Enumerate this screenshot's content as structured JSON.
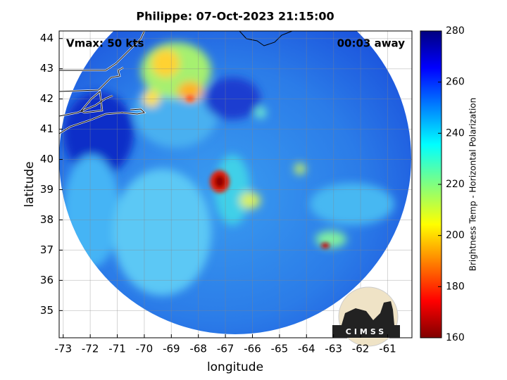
{
  "chart_data": {
    "type": "image",
    "title": "Philippe: 07-Oct-2023 21:15:00",
    "xlabel": "longitude",
    "ylabel": "latitude",
    "annotations": [
      "Vmax: 50 kts",
      "00:03 away"
    ],
    "logo": "CIMSS",
    "xlim": [
      -73.15,
      -60.1
    ],
    "xticks": [
      -73,
      -72,
      -71,
      -70,
      -69,
      -68,
      -67,
      -66,
      -65,
      -64,
      -63,
      -62,
      -61
    ],
    "ylim": [
      34.1,
      44.25
    ],
    "yticks": [
      35,
      36,
      37,
      38,
      39,
      40,
      41,
      42,
      43,
      44
    ],
    "colorbar": {
      "label": "Brightness Temp - Horizontal Polarization",
      "lim": [
        160,
        280
      ],
      "ticks": [
        160,
        180,
        200,
        220,
        240,
        260,
        280
      ]
    },
    "grid": true
  }
}
